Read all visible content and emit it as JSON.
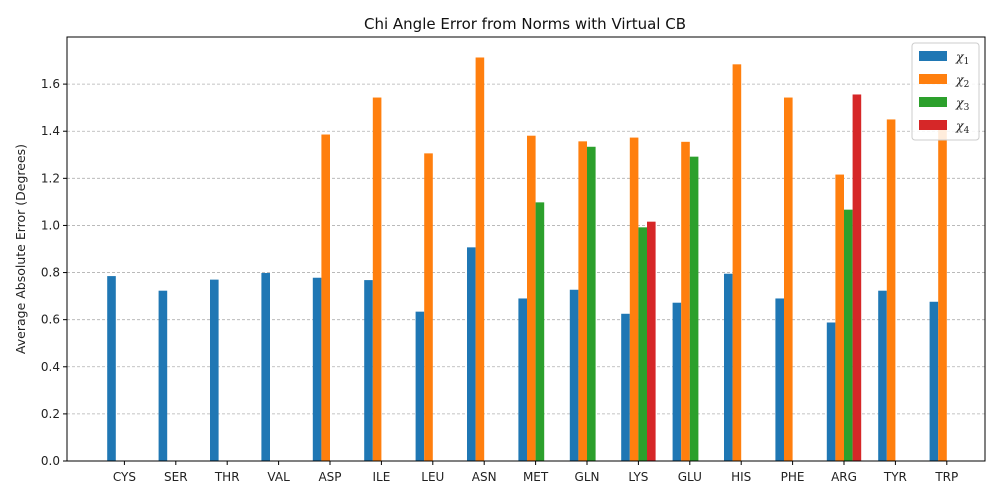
{
  "chart_data": {
    "type": "bar",
    "title": "Chi Angle Error from Norms with Virtual CB",
    "xlabel": "",
    "ylabel": "Average Absolute Error (Degrees)",
    "ylim": [
      0,
      1.8
    ],
    "yticks": [
      "0.0",
      "0.2",
      "0.4",
      "0.6",
      "0.8",
      "1.0",
      "1.2",
      "1.4",
      "1.6"
    ],
    "grid": "y-dashed",
    "legend_position": "top-right",
    "categories": [
      "CYS",
      "SER",
      "THR",
      "VAL",
      "ASP",
      "ILE",
      "LEU",
      "ASN",
      "MET",
      "GLN",
      "LYS",
      "GLU",
      "HIS",
      "PHE",
      "ARG",
      "TYR",
      "TRP"
    ],
    "series": [
      {
        "name": "χ",
        "sub": "1",
        "color": "#1f77b4",
        "values": [
          0.785,
          0.723,
          0.77,
          0.798,
          0.778,
          0.768,
          0.634,
          0.907,
          0.69,
          0.727,
          0.625,
          0.672,
          0.795,
          0.69,
          0.588,
          0.723,
          0.676
        ]
      },
      {
        "name": "χ",
        "sub": "2",
        "color": "#ff7f0e",
        "values": [
          null,
          null,
          null,
          null,
          1.386,
          1.543,
          1.306,
          1.713,
          1.381,
          1.357,
          1.373,
          1.355,
          1.684,
          1.543,
          1.216,
          1.45,
          1.44
        ]
      },
      {
        "name": "χ",
        "sub": "3",
        "color": "#2ca02c",
        "values": [
          null,
          null,
          null,
          null,
          null,
          null,
          null,
          null,
          1.098,
          1.334,
          0.992,
          1.292,
          null,
          null,
          1.067,
          null,
          null
        ]
      },
      {
        "name": "χ",
        "sub": "4",
        "color": "#d62728",
        "values": [
          null,
          null,
          null,
          null,
          null,
          null,
          null,
          null,
          null,
          null,
          1.016,
          null,
          null,
          null,
          1.556,
          null,
          null
        ]
      }
    ]
  }
}
